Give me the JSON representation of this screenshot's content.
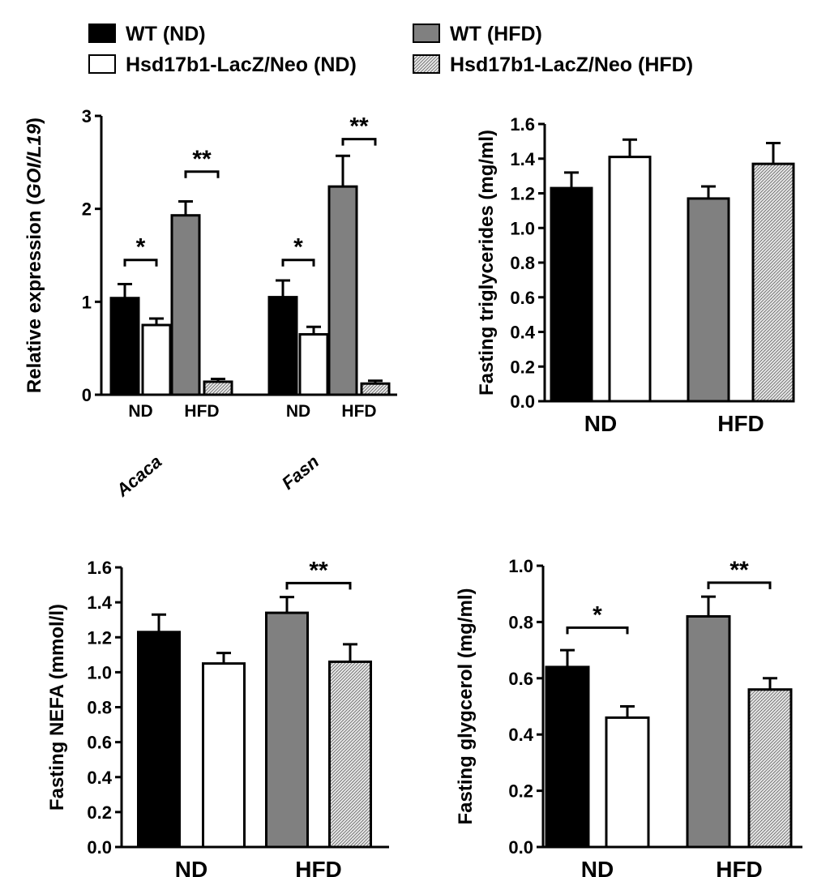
{
  "legend": {
    "placement": "top",
    "entries": [
      {
        "key": "wt_nd",
        "label": "WT (ND)",
        "fill": "#000000"
      },
      {
        "key": "wt_hfd",
        "label": "WT (HFD)",
        "fill": "#808080"
      },
      {
        "key": "ko_nd",
        "label": "Hsd17b1-LacZ/Neo (ND)",
        "fill": "#ffffff"
      },
      {
        "key": "ko_hfd",
        "label": "Hsd17b1-LacZ/Neo (HFD)",
        "fill": "hatched"
      }
    ]
  },
  "chart_data": [
    {
      "id": "gene",
      "type": "bar",
      "ylabel_prefix": "Relative expression (",
      "ylabel_italic": "GOI/L19",
      "ylabel_suffix": ")",
      "ylim": [
        0,
        3
      ],
      "yticks": [
        "0",
        "1",
        "2",
        "3"
      ],
      "grid": false,
      "groups": [
        {
          "gene": "Acaca",
          "diets": [
            "ND",
            "HFD"
          ]
        },
        {
          "gene": "Fasn",
          "diets": [
            "ND",
            "HFD"
          ]
        }
      ],
      "bars": [
        {
          "gene": "Acaca",
          "series": "wt_nd",
          "value": 1.04,
          "err": 0.15
        },
        {
          "gene": "Acaca",
          "series": "ko_nd",
          "value": 0.75,
          "err": 0.07
        },
        {
          "gene": "Acaca",
          "series": "wt_hfd",
          "value": 1.93,
          "err": 0.15
        },
        {
          "gene": "Acaca",
          "series": "ko_hfd",
          "value": 0.14,
          "err": 0.03
        },
        {
          "gene": "Fasn",
          "series": "wt_nd",
          "value": 1.05,
          "err": 0.18
        },
        {
          "gene": "Fasn",
          "series": "ko_nd",
          "value": 0.65,
          "err": 0.08
        },
        {
          "gene": "Fasn",
          "series": "wt_hfd",
          "value": 2.24,
          "err": 0.33
        },
        {
          "gene": "Fasn",
          "series": "ko_hfd",
          "value": 0.12,
          "err": 0.03
        }
      ],
      "significance": [
        {
          "from": 0,
          "to": 1,
          "label": "*",
          "level": 1.45
        },
        {
          "from": 2,
          "to": 3,
          "label": "**",
          "level": 2.4
        },
        {
          "from": 4,
          "to": 5,
          "label": "*",
          "level": 1.45
        },
        {
          "from": 6,
          "to": 7,
          "label": "**",
          "level": 2.75
        }
      ]
    },
    {
      "id": "tg",
      "type": "bar",
      "ylabel": "Fasting triglycerides (mg/ml)",
      "ylim": [
        0,
        1.6
      ],
      "yticks": [
        "0.0",
        "0.2",
        "0.4",
        "0.6",
        "0.8",
        "1.0",
        "1.2",
        "1.4",
        "1.6"
      ],
      "grid": false,
      "categories": [
        "ND",
        "HFD"
      ],
      "bars": [
        {
          "series": "wt_nd",
          "value": 1.23,
          "err": 0.09
        },
        {
          "series": "ko_nd",
          "value": 1.41,
          "err": 0.1
        },
        {
          "series": "wt_hfd",
          "value": 1.17,
          "err": 0.07
        },
        {
          "series": "ko_hfd",
          "value": 1.37,
          "err": 0.12
        }
      ],
      "significance": []
    },
    {
      "id": "nefa",
      "type": "bar",
      "ylabel": "Fasting NEFA (mmol/l)",
      "ylim": [
        0,
        1.6
      ],
      "yticks": [
        "0.0",
        "0.2",
        "0.4",
        "0.6",
        "0.8",
        "1.0",
        "1.2",
        "1.4",
        "1.6"
      ],
      "grid": false,
      "categories": [
        "ND",
        "HFD"
      ],
      "bars": [
        {
          "series": "wt_nd",
          "value": 1.23,
          "err": 0.1
        },
        {
          "series": "ko_nd",
          "value": 1.05,
          "err": 0.06
        },
        {
          "series": "wt_hfd",
          "value": 1.34,
          "err": 0.09
        },
        {
          "series": "ko_hfd",
          "value": 1.06,
          "err": 0.1
        }
      ],
      "significance": [
        {
          "from": 2,
          "to": 3,
          "label": "**",
          "level": 1.51
        }
      ]
    },
    {
      "id": "glycerol",
      "type": "bar",
      "ylabel": "Fasting glygcerol (mg/ml)",
      "ylim": [
        0,
        1.0
      ],
      "yticks": [
        "0.0",
        "0.2",
        "0.4",
        "0.6",
        "0.8",
        "1.0"
      ],
      "grid": false,
      "categories": [
        "ND",
        "HFD"
      ],
      "bars": [
        {
          "series": "wt_nd",
          "value": 0.64,
          "err": 0.06
        },
        {
          "series": "ko_nd",
          "value": 0.46,
          "err": 0.04
        },
        {
          "series": "wt_hfd",
          "value": 0.82,
          "err": 0.07
        },
        {
          "series": "ko_hfd",
          "value": 0.56,
          "err": 0.04
        }
      ],
      "significance": [
        {
          "from": 0,
          "to": 1,
          "label": "*",
          "level": 0.78
        },
        {
          "from": 2,
          "to": 3,
          "label": "**",
          "level": 0.94
        }
      ]
    }
  ]
}
